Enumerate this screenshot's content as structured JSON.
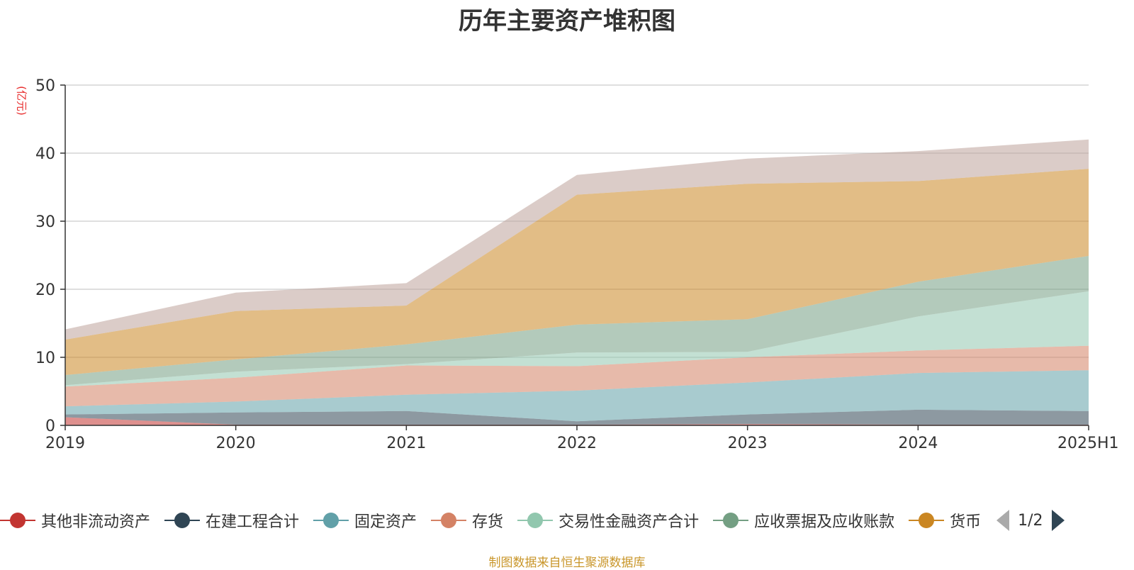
{
  "chart_data": {
    "type": "area",
    "title": "历年主要资产堆积图",
    "y_unit": "(亿元)",
    "xlabel": "",
    "ylabel": "",
    "x": [
      "2019",
      "2020",
      "2021",
      "2022",
      "2023",
      "2024",
      "2025H1"
    ],
    "ylim": [
      0,
      50
    ],
    "yticks": [
      0,
      10,
      20,
      30,
      40,
      50
    ],
    "grid": true,
    "stacked": true,
    "legend_position": "bottom",
    "series": [
      {
        "name": "其他非流动资产",
        "color": "#c23531",
        "values": [
          1.2,
          0.1,
          0.1,
          0.1,
          0.2,
          0.1,
          0.1
        ]
      },
      {
        "name": "在建工程合计",
        "color": "#2f4554",
        "values": [
          0.4,
          1.8,
          2.0,
          0.5,
          1.4,
          2.2,
          2.0
        ]
      },
      {
        "name": "固定资产",
        "color": "#61a0a8",
        "values": [
          1.2,
          1.6,
          2.4,
          4.5,
          4.7,
          5.4,
          6.0
        ]
      },
      {
        "name": "存货",
        "color": "#d48265",
        "values": [
          2.9,
          3.5,
          4.3,
          3.6,
          3.7,
          3.3,
          3.6
        ]
      },
      {
        "name": "交易性金融资产合计",
        "color": "#91c7ae",
        "values": [
          0.2,
          0.9,
          0.2,
          2.0,
          0.8,
          5.0,
          8.0
        ]
      },
      {
        "name": "应收票据及应收账款",
        "color": "#749f83",
        "values": [
          1.5,
          1.8,
          2.9,
          4.1,
          4.8,
          5.1,
          5.2
        ]
      },
      {
        "name": "货币",
        "color": "#ca8622",
        "values": [
          5.2,
          7.1,
          5.7,
          19.1,
          19.9,
          14.8,
          12.8
        ]
      },
      {
        "name": "",
        "color": "#bda29a",
        "values": [
          1.5,
          2.7,
          3.3,
          2.9,
          3.7,
          4.4,
          4.3
        ]
      }
    ]
  },
  "legend": {
    "pager_text": "1/2",
    "prev_icon": "triangle-left-icon",
    "next_icon": "triangle-right-icon"
  },
  "footer": {
    "source_text": "制图数据来自恒生聚源数据库"
  }
}
